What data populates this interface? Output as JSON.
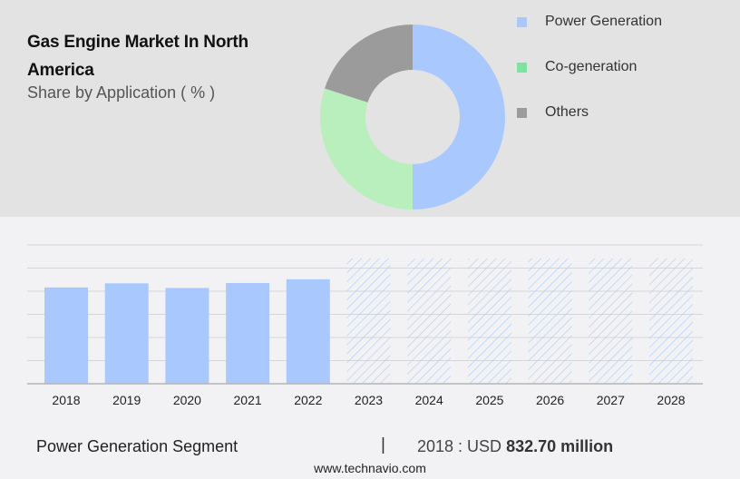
{
  "header": {
    "title": "Gas Engine Market In North America",
    "subtitle": "Share by Application ( % )"
  },
  "legend": [
    {
      "label": "Power Generation",
      "color": "#a9c9fe"
    },
    {
      "label": "Co-generation",
      "color": "#7ee3a0"
    },
    {
      "label": "Others",
      "color": "#9b9b9b"
    }
  ],
  "footer": {
    "segment_label": "Power Generation Segment",
    "divider": "|",
    "value_prefix": "2018 : USD ",
    "value_bold": "832.70 million",
    "website": "www.technavio.com"
  },
  "chart_data": [
    {
      "type": "pie",
      "title": "Gas Engine Market In North America",
      "subtitle": "Share by Application ( % )",
      "donut": true,
      "categories": [
        "Power Generation",
        "Co-generation",
        "Others"
      ],
      "values": [
        50,
        30,
        20
      ],
      "colors": [
        "#a9c9fe",
        "#b8efbc",
        "#9b9b9b"
      ],
      "legend_position": "right"
    },
    {
      "type": "bar",
      "title": "Power Generation Segment",
      "categories": [
        "2018",
        "2019",
        "2020",
        "2021",
        "2022",
        "2023",
        "2024",
        "2025",
        "2026",
        "2027",
        "2028"
      ],
      "values": [
        832.7,
        868,
        828,
        871,
        903,
        1084,
        1084,
        1084,
        1084,
        1084,
        1084
      ],
      "forecast_from": "2023",
      "forecast_style": "hatched, equal placeholder height",
      "ylim": [
        0,
        1200
      ],
      "grid_step": 200,
      "grid": true,
      "y_ticks_shown": false,
      "bar_color": "#a9c9fe",
      "annotation": "2018 : USD 832.70 million"
    }
  ]
}
